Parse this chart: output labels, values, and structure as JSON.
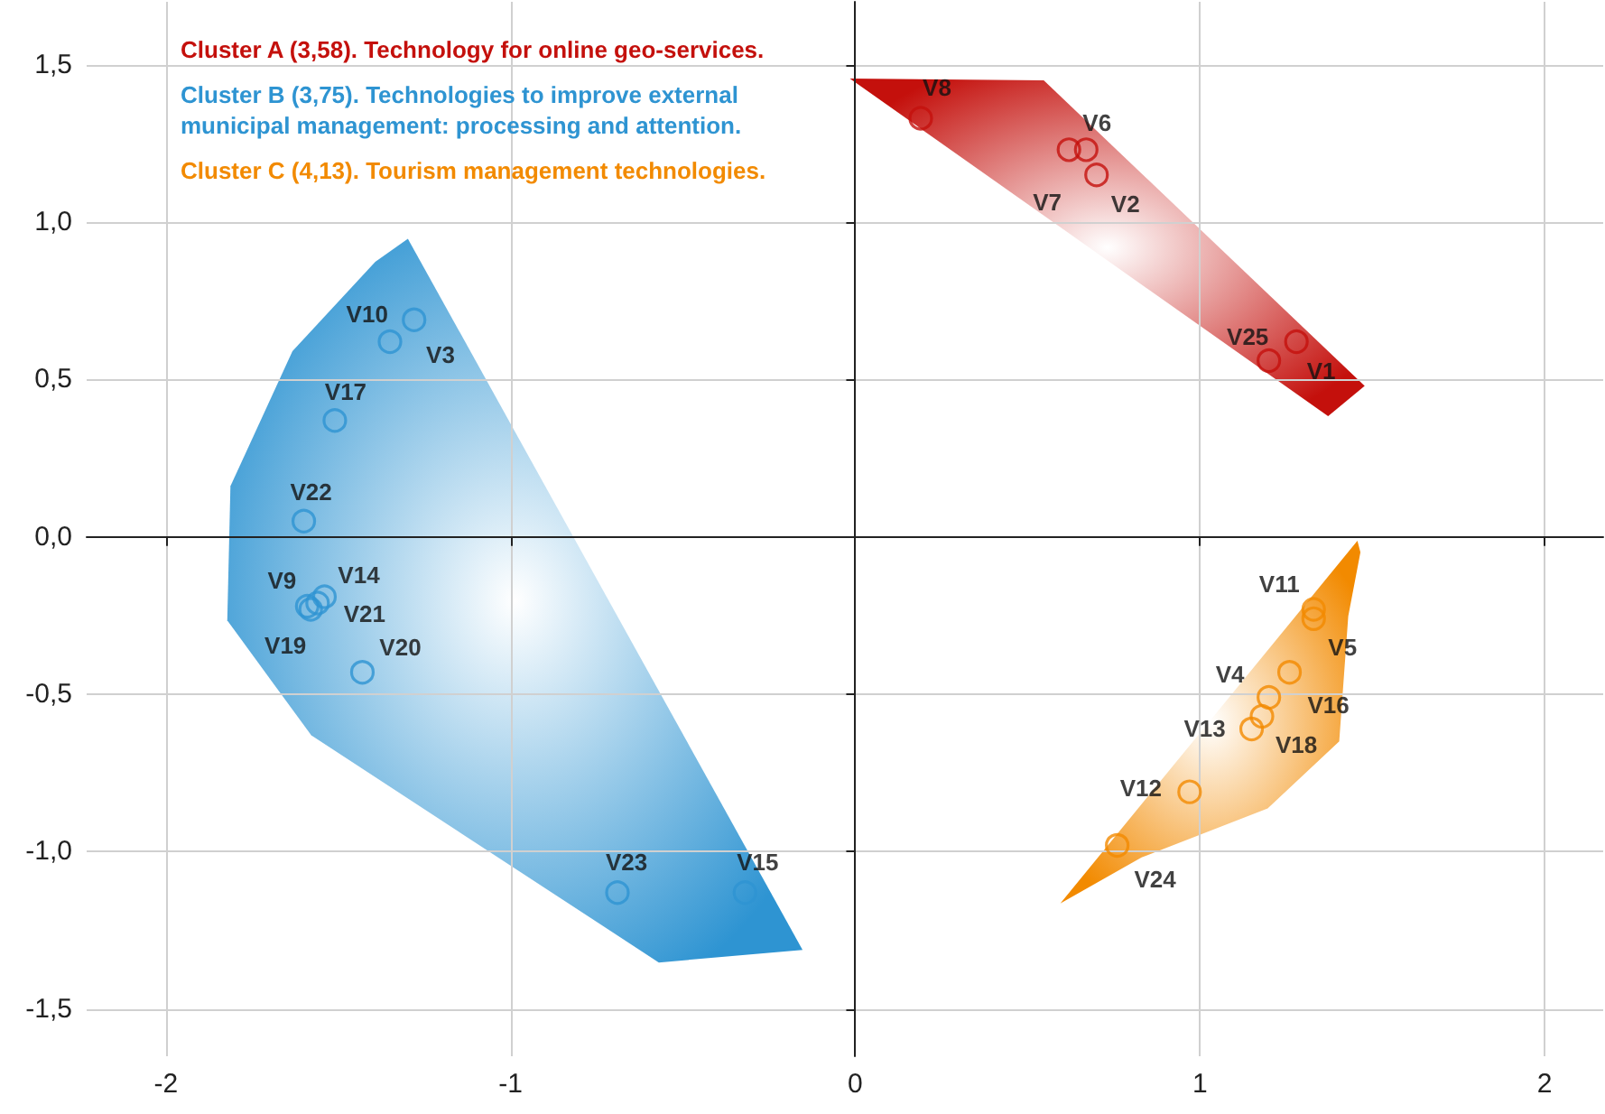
{
  "chart_data": {
    "type": "scatter",
    "marker": "circle",
    "grid": true,
    "legend": "top left",
    "xlim": [
      -2.23,
      2.17
    ],
    "ylim": [
      -1.65,
      1.7
    ],
    "xticks": [
      -2,
      -1,
      0,
      1,
      2
    ],
    "yticks": [
      {
        "value": -1.5,
        "label": "-1,5"
      },
      {
        "value": -1,
        "label": "-1,0"
      },
      {
        "value": -0.5,
        "label": "-0,5"
      },
      {
        "value": 0,
        "label": "0,0"
      },
      {
        "value": 0.5,
        "label": "0,5"
      },
      {
        "value": 1,
        "label": "1,0"
      },
      {
        "value": 1.5,
        "label": "1,5"
      }
    ],
    "series": [
      {
        "name": "Cluster A (3,58). Technology for online geo-services.",
        "color": "#c4100c",
        "x": [
          0.19,
          0.62,
          0.67,
          0.7,
          1.28,
          1.2
        ],
        "values": [
          1.33,
          1.23,
          1.23,
          1.15,
          0.62,
          0.56
        ]
      },
      {
        "name": "Cluster B (3,75). Technologies to improve external municipal management: processing and attention.",
        "color": "#2e94d2",
        "x": [
          -1.28,
          -1.35,
          -1.51,
          -1.6,
          -1.59,
          -1.58,
          -1.56,
          -1.54,
          -1.43,
          -0.69,
          -0.32
        ],
        "values": [
          0.69,
          0.62,
          0.37,
          0.05,
          -0.22,
          -0.23,
          -0.21,
          -0.19,
          -0.43,
          -1.13,
          -1.13
        ]
      },
      {
        "name": "Cluster C (4,13). Tourism management technologies.",
        "color": "#f28a00",
        "x": [
          1.33,
          1.33,
          1.26,
          1.2,
          1.18,
          1.15,
          0.97,
          0.76
        ],
        "values": [
          -0.23,
          -0.26,
          -0.43,
          -0.51,
          -0.57,
          -0.61,
          -0.81,
          -0.98
        ]
      }
    ],
    "annotations": [
      {
        "text": "V8",
        "x": 0.19,
        "y": 1.33
      },
      {
        "text": "V7",
        "x": 0.62,
        "y": 1.23
      },
      {
        "text": "V6",
        "x": 0.67,
        "y": 1.23
      },
      {
        "text": "V2",
        "x": 0.7,
        "y": 1.15
      },
      {
        "text": "V25",
        "x": 1.28,
        "y": 0.62
      },
      {
        "text": "V1",
        "x": 1.2,
        "y": 0.56
      },
      {
        "text": "V10",
        "x": -1.28,
        "y": 0.69
      },
      {
        "text": "V3",
        "x": -1.35,
        "y": 0.62
      },
      {
        "text": "V17",
        "x": -1.51,
        "y": 0.37
      },
      {
        "text": "V22",
        "x": -1.6,
        "y": 0.05
      },
      {
        "text": "V9",
        "x": -1.59,
        "y": -0.22
      },
      {
        "text": "V19",
        "x": -1.58,
        "y": -0.23
      },
      {
        "text": "V21",
        "x": -1.56,
        "y": -0.21
      },
      {
        "text": "V14",
        "x": -1.54,
        "y": -0.19
      },
      {
        "text": "V20",
        "x": -1.43,
        "y": -0.43
      },
      {
        "text": "V23",
        "x": -0.69,
        "y": -1.13
      },
      {
        "text": "V15",
        "x": -0.32,
        "y": -1.13
      },
      {
        "text": "V11",
        "x": 1.33,
        "y": -0.23
      },
      {
        "text": "V5",
        "x": 1.33,
        "y": -0.26
      },
      {
        "text": "V4",
        "x": 1.26,
        "y": -0.43
      },
      {
        "text": "V16",
        "x": 1.2,
        "y": -0.51
      },
      {
        "text": "V18",
        "x": 1.18,
        "y": -0.57
      },
      {
        "text": "V13",
        "x": 1.15,
        "y": -0.61
      },
      {
        "text": "V12",
        "x": 0.97,
        "y": -0.81
      },
      {
        "text": "V24",
        "x": 0.76,
        "y": -0.98
      }
    ]
  }
}
